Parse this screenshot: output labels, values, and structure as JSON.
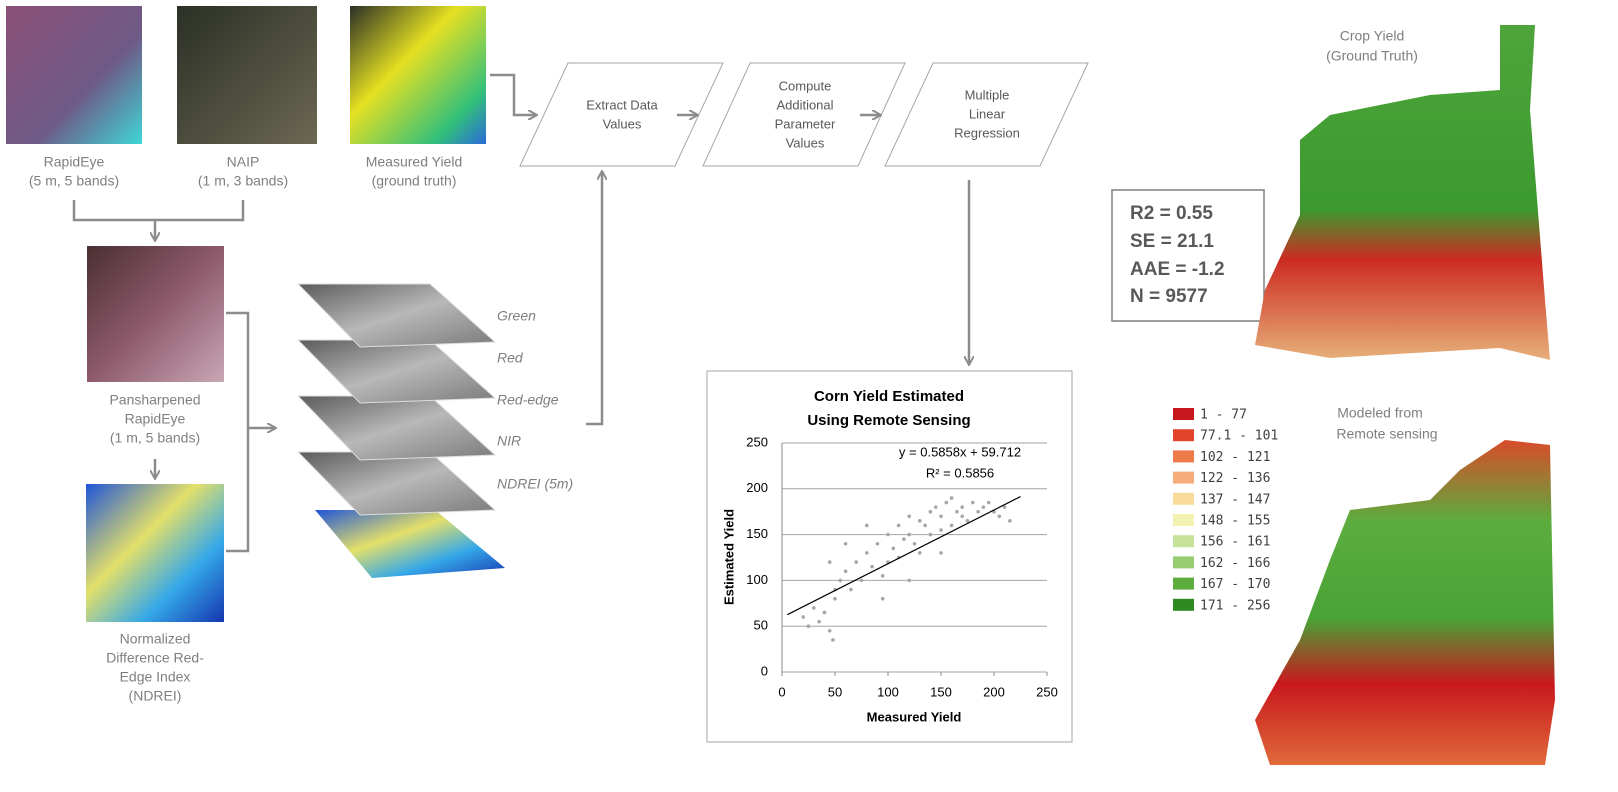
{
  "sources": [
    {
      "lines": [
        "RapidEye",
        "(5 m, 5 bands)"
      ]
    },
    {
      "lines": [
        "NAIP",
        "(1 m, 3 bands)"
      ]
    },
    {
      "lines": [
        "Measured Yield",
        "(ground truth)"
      ]
    }
  ],
  "pansharpened": {
    "lines": [
      "Pansharpened",
      "RapidEye",
      "(1 m, 5 bands)"
    ]
  },
  "ndrei": {
    "lines": [
      "Normalized",
      "Difference Red-",
      "Edge Index",
      "(NDREI)"
    ]
  },
  "layers": [
    "Green",
    "Red",
    "Red-edge",
    "NIR",
    "NDREI (5m)"
  ],
  "steps": [
    {
      "lines": [
        "Extract Data",
        "Values"
      ]
    },
    {
      "lines": [
        "Compute",
        "Additional",
        "Parameter",
        "Values"
      ]
    },
    {
      "lines": [
        "Multiple",
        "Linear",
        "Regression"
      ]
    }
  ],
  "stats": [
    "R2 = 0.55",
    "SE = 21.1",
    "AAE = -1.2",
    "N = 9577"
  ],
  "maps": [
    {
      "lines": [
        "Crop Yield",
        "(Ground Truth)"
      ]
    },
    {
      "lines": [
        "Modeled from",
        "Remote sensing"
      ]
    }
  ],
  "legend": [
    {
      "label": "1 - 77",
      "color": "#c8181e"
    },
    {
      "label": "77.1 - 101",
      "color": "#e0452b"
    },
    {
      "label": "102 - 121",
      "color": "#ee7a4a"
    },
    {
      "label": "122 - 136",
      "color": "#f6ad7a"
    },
    {
      "label": "137 - 147",
      "color": "#fbdb9a"
    },
    {
      "label": "148 - 155",
      "color": "#f3f2b0"
    },
    {
      "label": "156 - 161",
      "color": "#c7e29a"
    },
    {
      "label": "162 - 166",
      "color": "#98cc70"
    },
    {
      "label": "167 - 170",
      "color": "#5cad3e"
    },
    {
      "label": "171 - 256",
      "color": "#2e8b22"
    }
  ],
  "chart": {
    "type": "scatter",
    "title_lines": [
      "Corn Yield Estimated",
      "Using Remote Sensing"
    ],
    "x_label": "Measured Yield",
    "y_label": "Estimated Yield",
    "equation": "y = 0.5858x + 59.712",
    "r2": "R² = 0.5856",
    "xlim": [
      0,
      250
    ],
    "ylim": [
      0,
      250
    ],
    "xticks": [
      0,
      50,
      100,
      150,
      200,
      250
    ],
    "yticks": [
      0,
      50,
      100,
      150,
      200,
      250
    ],
    "grid": true,
    "color": "#a6a6a6",
    "x": [
      20,
      25,
      30,
      35,
      40,
      45,
      48,
      50,
      55,
      60,
      65,
      70,
      75,
      80,
      85,
      90,
      95,
      100,
      100,
      105,
      110,
      110,
      115,
      120,
      120,
      125,
      130,
      130,
      135,
      140,
      140,
      145,
      150,
      150,
      155,
      160,
      160,
      165,
      170,
      170,
      175,
      180,
      185,
      190,
      195,
      200,
      205,
      210,
      215,
      45,
      50,
      60,
      80,
      95,
      120,
      150
    ],
    "y": [
      60,
      50,
      70,
      55,
      65,
      45,
      35,
      80,
      100,
      110,
      90,
      120,
      100,
      130,
      115,
      140,
      105,
      150,
      120,
      135,
      160,
      125,
      145,
      150,
      170,
      140,
      165,
      130,
      160,
      175,
      150,
      180,
      170,
      155,
      185,
      160,
      190,
      175,
      170,
      180,
      165,
      185,
      175,
      180,
      185,
      175,
      170,
      180,
      165,
      120,
      90,
      140,
      160,
      80,
      100,
      130
    ],
    "trendline": {
      "x": [
        5,
        225
      ],
      "y": [
        62.6,
        191.5
      ]
    }
  }
}
